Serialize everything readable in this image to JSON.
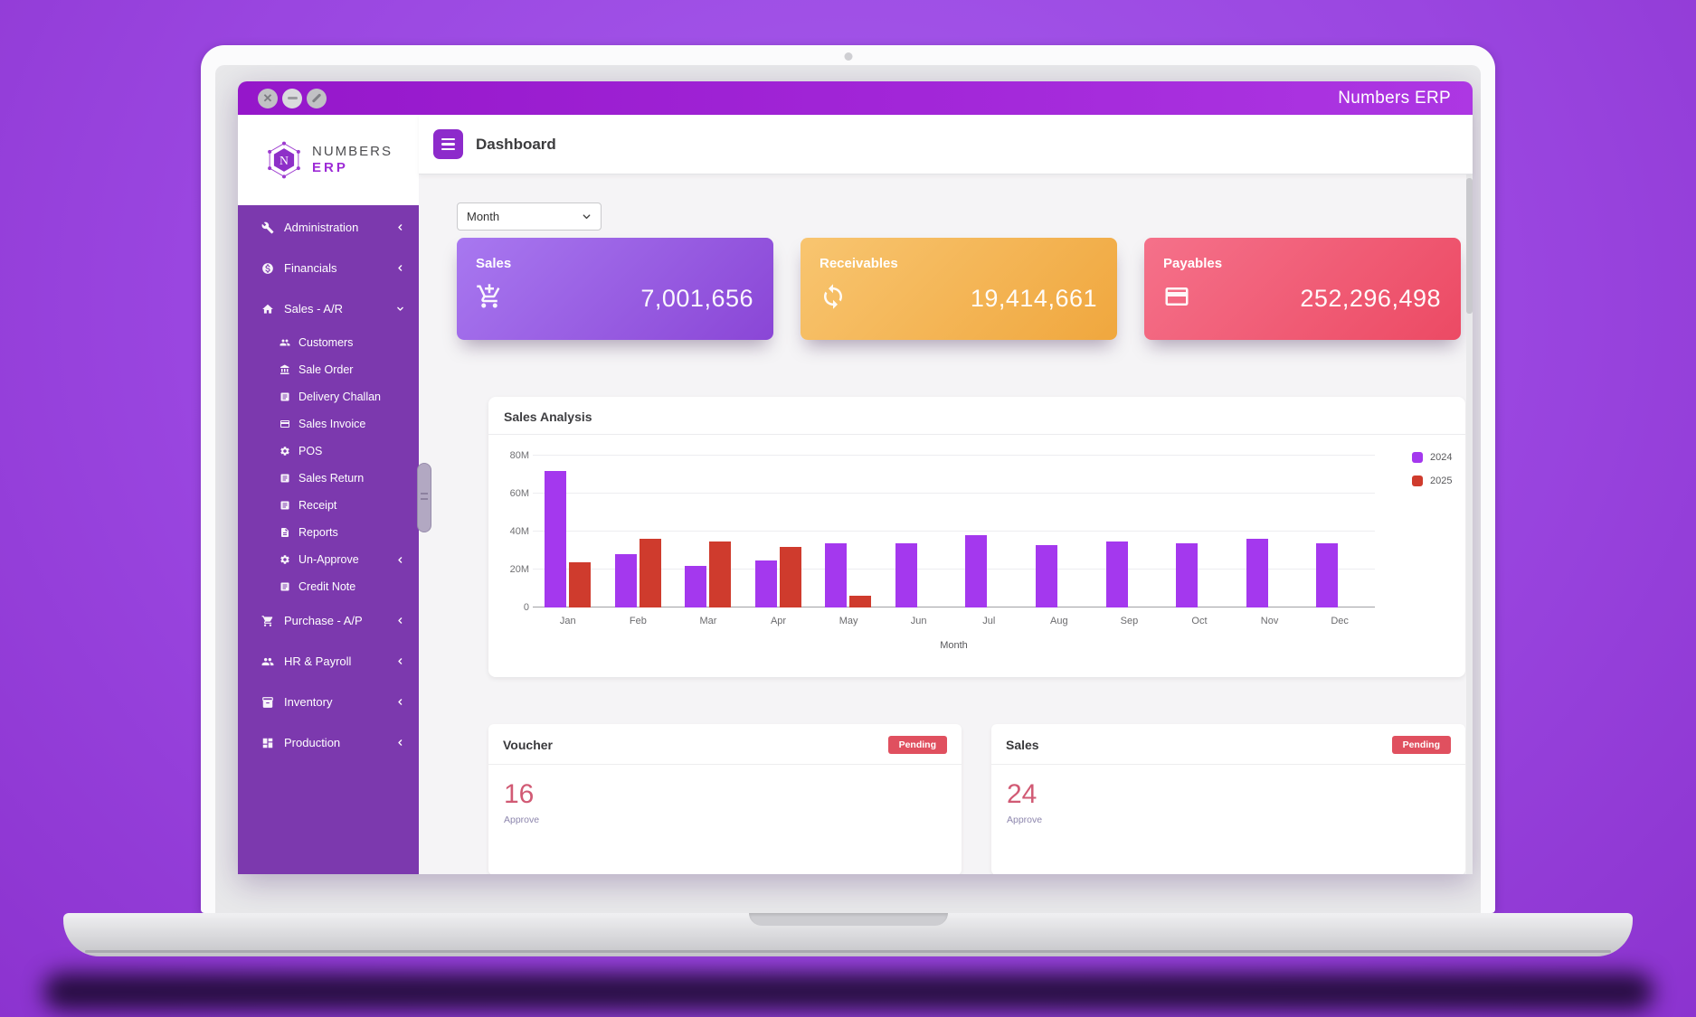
{
  "window": {
    "title": "Numbers ERP"
  },
  "sidebar": {
    "logo": {
      "line1": "NUMBERS",
      "line2": "ERP"
    },
    "items": [
      {
        "label": "Administration",
        "icon": "wrench-icon",
        "chevron": "left"
      },
      {
        "label": "Financials",
        "icon": "coin-icon",
        "chevron": "left"
      },
      {
        "label": "Sales - A/R",
        "icon": "home-icon",
        "chevron": "down",
        "expanded": true,
        "children": [
          {
            "label": "Customers",
            "icon": "users-icon"
          },
          {
            "label": "Sale Order",
            "icon": "bank-icon"
          },
          {
            "label": "Delivery Challan",
            "icon": "document-icon"
          },
          {
            "label": "Sales Invoice",
            "icon": "invoice-icon"
          },
          {
            "label": "POS",
            "icon": "gear-icon"
          },
          {
            "label": "Sales Return",
            "icon": "document-icon"
          },
          {
            "label": "Receipt",
            "icon": "document-icon"
          },
          {
            "label": "Reports",
            "icon": "file-icon"
          },
          {
            "label": "Un-Approve",
            "icon": "gear-icon",
            "chevron": "left"
          },
          {
            "label": "Credit Note",
            "icon": "document-icon"
          }
        ]
      },
      {
        "label": "Purchase - A/P",
        "icon": "cart-icon",
        "chevron": "left"
      },
      {
        "label": "HR & Payroll",
        "icon": "users-icon",
        "chevron": "left"
      },
      {
        "label": "Inventory",
        "icon": "box-icon",
        "chevron": "left"
      },
      {
        "label": "Production",
        "icon": "grid-icon",
        "chevron": "left"
      }
    ]
  },
  "header": {
    "title": "Dashboard"
  },
  "filter": {
    "selected": "Month"
  },
  "stat_cards": [
    {
      "label": "Sales",
      "value": "7,001,656",
      "icon": "cart-plus-icon",
      "color_from": "#a878f0",
      "color_to": "#8a46d6"
    },
    {
      "label": "Receivables",
      "value": "19,414,661",
      "icon": "sync-icon",
      "color_from": "#f8c570",
      "color_to": "#f0a73e"
    },
    {
      "label": "Payables",
      "value": "252,296,498",
      "icon": "credit-card-icon",
      "color_from": "#f5718a",
      "color_to": "#ec4a64"
    }
  ],
  "chart_data": {
    "type": "bar",
    "title": "Sales Analysis",
    "xlabel": "Month",
    "categories": [
      "Jan",
      "Feb",
      "Mar",
      "Apr",
      "May",
      "Jun",
      "Jul",
      "Aug",
      "Sep",
      "Oct",
      "Nov",
      "Dec"
    ],
    "series": [
      {
        "name": "2024",
        "color": "#a438ee",
        "values": [
          72,
          28,
          22,
          25,
          34,
          34,
          38,
          33,
          35,
          34,
          36,
          34
        ]
      },
      {
        "name": "2025",
        "color": "#cf3b2d",
        "values": [
          24,
          36,
          35,
          32,
          6,
          0,
          0,
          0,
          0,
          0,
          0,
          0
        ]
      }
    ],
    "unit": "M",
    "y_ticks": [
      "0",
      "20M",
      "40M",
      "60M",
      "80M"
    ],
    "ylim": [
      0,
      80
    ],
    "grid": true,
    "legend_position": "right"
  },
  "approval_cards": [
    {
      "title": "Voucher",
      "badge": "Pending",
      "count": "16",
      "action": "Approve",
      "badge_color": "#e0505f"
    },
    {
      "title": "Sales",
      "badge": "Pending",
      "count": "24",
      "action": "Approve",
      "badge_color": "#e0505f"
    }
  ]
}
